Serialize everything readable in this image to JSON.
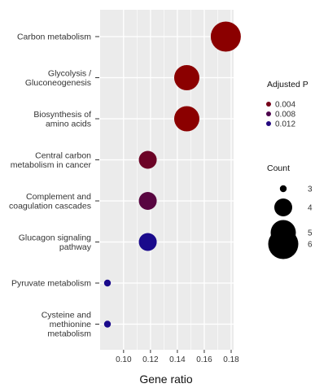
{
  "chart_data": {
    "type": "scatter",
    "subtype": "bubble",
    "title": "",
    "xlabel": "Gene ratio",
    "ylabel": "",
    "xlim": [
      0.088,
      0.18
    ],
    "xticks": [
      0.1,
      0.12,
      0.14,
      0.16,
      0.18
    ],
    "xtick_labels": [
      "0.10",
      "0.12",
      "0.14",
      "0.16",
      "0.18"
    ],
    "grid": true,
    "categories": [
      "Carbon metabolism",
      "Glycolysis / Gluconeogenesis",
      "Biosynthesis of amino acids",
      "Central carbon metabolism in cancer",
      "Complement and coagulation cascades",
      "Glucagon signaling pathway",
      "Pyruvate metabolism",
      "Cysteine and methionine metabolism"
    ],
    "category_labels": [
      [
        "Carbon metabolism"
      ],
      [
        "Glycolysis /",
        "Gluconeogenesis"
      ],
      [
        "Biosynthesis of",
        "amino acids"
      ],
      [
        "Central carbon",
        "metabolism in cancer"
      ],
      [
        "Complement and",
        "coagulation cascades"
      ],
      [
        "Glucagon signaling",
        "pathway"
      ],
      [
        "Pyruvate metabolism"
      ],
      [
        "Cysteine and",
        "methionine",
        "metabolism"
      ]
    ],
    "points": [
      {
        "category": "Carbon metabolism",
        "gene_ratio": 0.176,
        "count": 6,
        "p_adjust": 0.002
      },
      {
        "category": "Glycolysis / Gluconeogenesis",
        "gene_ratio": 0.147,
        "count": 5,
        "p_adjust": 0.002
      },
      {
        "category": "Biosynthesis of amino acids",
        "gene_ratio": 0.147,
        "count": 5,
        "p_adjust": 0.002
      },
      {
        "category": "Central carbon metabolism in cancer",
        "gene_ratio": 0.118,
        "count": 4,
        "p_adjust": 0.005
      },
      {
        "category": "Complement and coagulation cascades",
        "gene_ratio": 0.118,
        "count": 4,
        "p_adjust": 0.007
      },
      {
        "category": "Glucagon signaling pathway",
        "gene_ratio": 0.118,
        "count": 4,
        "p_adjust": 0.013
      },
      {
        "category": "Pyruvate metabolism",
        "gene_ratio": 0.088,
        "count": 3,
        "p_adjust": 0.013
      },
      {
        "category": "Cysteine and methionine metabolism",
        "gene_ratio": 0.088,
        "count": 3,
        "p_adjust": 0.013
      }
    ],
    "color_legend": {
      "title": "Adjusted P",
      "entries": [
        {
          "label": "0.004",
          "value": 0.004
        },
        {
          "label": "0.008",
          "value": 0.008
        },
        {
          "label": "0.012",
          "value": 0.012
        }
      ],
      "color_low": "#8b0000",
      "color_high": "#1a0a8c"
    },
    "size_legend": {
      "title": "Count",
      "entries": [
        {
          "label": "3",
          "value": 3
        },
        {
          "label": "4",
          "value": 4
        },
        {
          "label": "5",
          "value": 5
        },
        {
          "label": "6",
          "value": 6
        }
      ]
    },
    "colors": {
      "panel_background": "#ebebeb",
      "grid": "#ffffff"
    }
  }
}
